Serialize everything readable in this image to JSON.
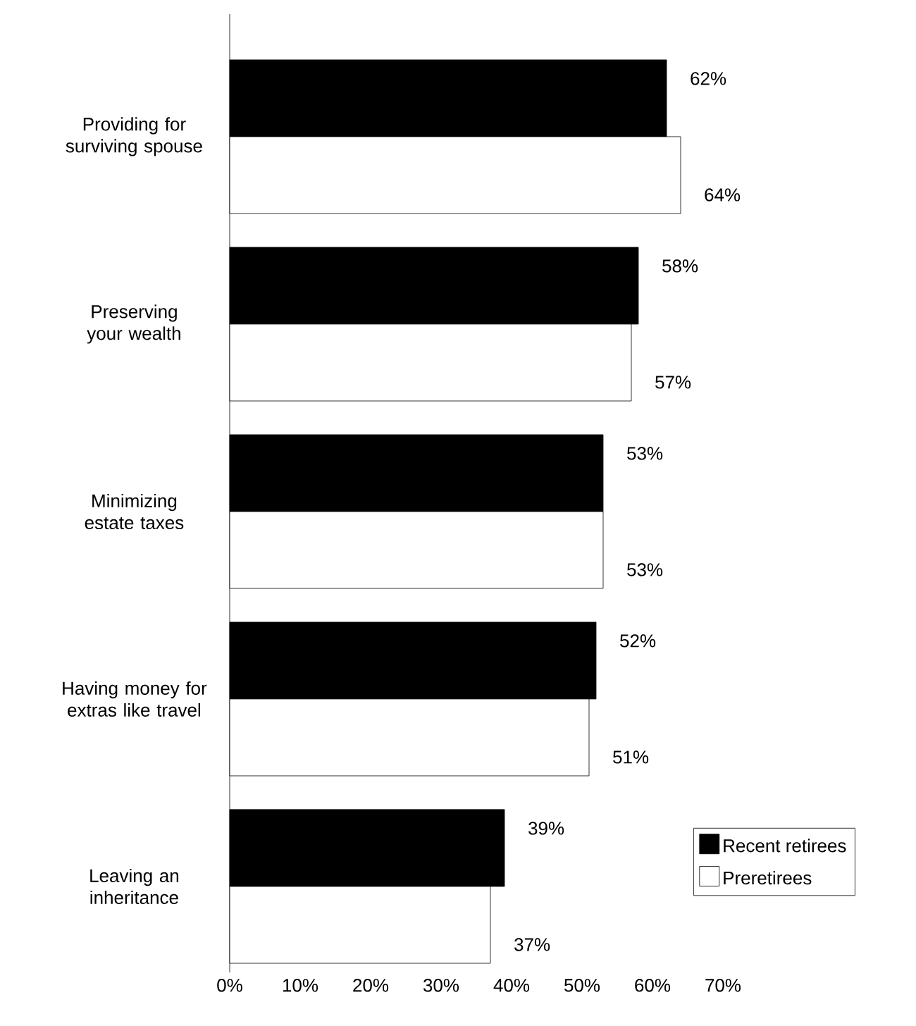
{
  "chart_data": {
    "type": "bar",
    "orientation": "horizontal",
    "categories": [
      "Providing for surviving spouse",
      "Preserving your wealth",
      "Minimizing estate taxes",
      "Having money for extras like travel",
      "Leaving an inheritance"
    ],
    "series": [
      {
        "name": "Recent retirees",
        "color": "#000000",
        "values": [
          62,
          58,
          53,
          52,
          39
        ],
        "value_labels": [
          "62%",
          "58%",
          "53%",
          "52%",
          "39%"
        ]
      },
      {
        "name": "Preretirees",
        "color": "#ffffff",
        "values": [
          64,
          57,
          53,
          51,
          37
        ],
        "value_labels": [
          "64%",
          "57%",
          "53%",
          "51%",
          "37%"
        ]
      }
    ],
    "xlim": [
      0,
      70
    ],
    "xticks": [
      {
        "value": 0,
        "label": "0%"
      },
      {
        "value": 10,
        "label": "10%"
      },
      {
        "value": 20,
        "label": "20%"
      },
      {
        "value": 30,
        "label": "30%"
      },
      {
        "value": 40,
        "label": "40%"
      },
      {
        "value": 50,
        "label": "50%"
      },
      {
        "value": 60,
        "label": "60%"
      },
      {
        "value": 70,
        "label": "70%"
      }
    ],
    "legend": "bottom right"
  }
}
